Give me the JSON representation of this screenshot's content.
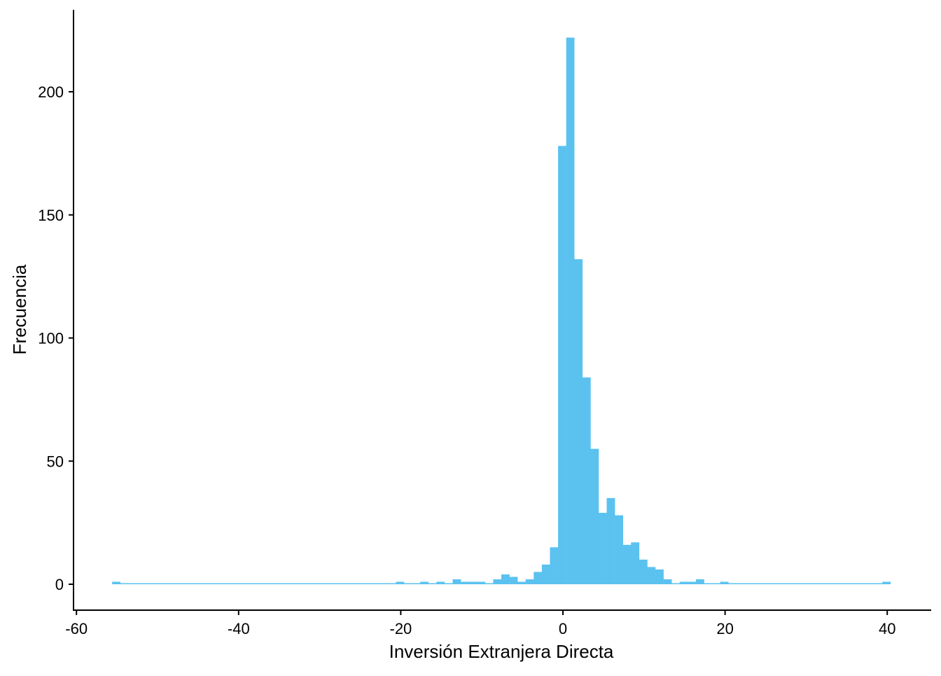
{
  "chart_data": {
    "type": "bar",
    "subtype": "histogram",
    "xlabel": "Inversión Extranjera Directa",
    "ylabel": "Frecuencia",
    "xlim": [
      -60,
      45
    ],
    "ylim": [
      -10,
      232
    ],
    "x_ticks": [
      -60,
      -40,
      -20,
      0,
      20,
      40
    ],
    "y_ticks": [
      0,
      50,
      100,
      150,
      200
    ],
    "x_tick_labels": [
      "-60",
      "-40",
      "-20",
      "0",
      "20",
      "40"
    ],
    "y_tick_labels": [
      "0",
      "50",
      "100",
      "150",
      "200"
    ],
    "bin_start": -55.6,
    "bin_width": 1,
    "counts": [
      1,
      0,
      0,
      0,
      0,
      0,
      0,
      0,
      0,
      0,
      0,
      0,
      0,
      0,
      0,
      0,
      0,
      0,
      0,
      0,
      0,
      0,
      0,
      0,
      0,
      0,
      0,
      0,
      0,
      0,
      0,
      0,
      0,
      0,
      0,
      1,
      0,
      0,
      1,
      0,
      1,
      0,
      2,
      1,
      1,
      1,
      0,
      2,
      4,
      3,
      1,
      2,
      5,
      8,
      15,
      178,
      222,
      132,
      84,
      55,
      29,
      35,
      28,
      16,
      17,
      10,
      7,
      6,
      2,
      0,
      1,
      1,
      2,
      0,
      0,
      1,
      0,
      0,
      0,
      0,
      0,
      0,
      0,
      0,
      0,
      0,
      0,
      0,
      0,
      0,
      0,
      0,
      0,
      0,
      0,
      1
    ],
    "fill_color": "#5BC2F0",
    "grid": false,
    "legend": "none"
  }
}
